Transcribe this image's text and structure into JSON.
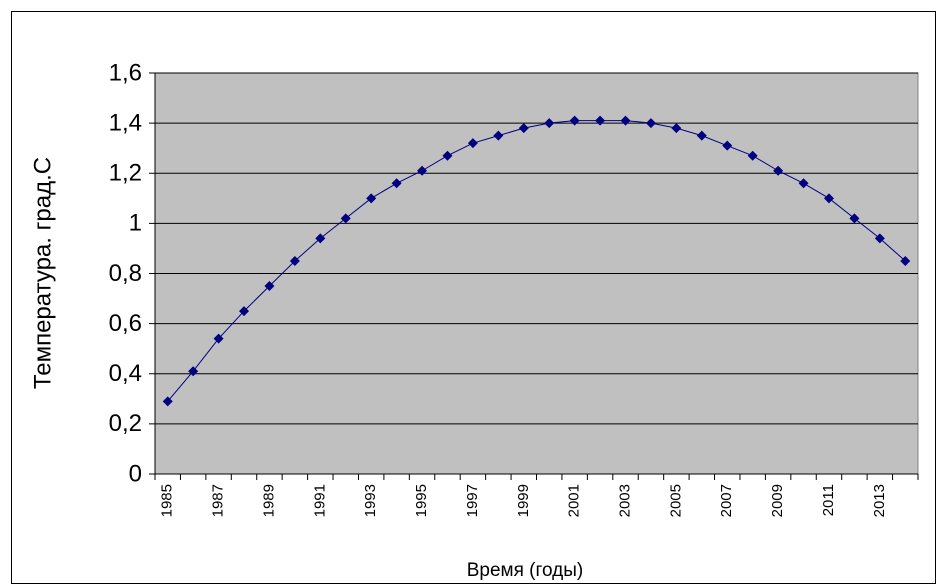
{
  "chart_data": {
    "type": "line",
    "ylabel": "Температура. град.С",
    "xlabel": "Время (годы)",
    "categories": [
      "1985",
      null,
      "1987",
      null,
      "1989",
      null,
      "1991",
      null,
      "1993",
      null,
      "1995",
      null,
      "1997",
      null,
      "1999",
      null,
      "2001",
      null,
      "2003",
      null,
      "2005",
      null,
      "2007",
      null,
      "2009",
      null,
      "2011",
      null,
      "2013",
      null
    ],
    "series": [
      {
        "color": "#000080",
        "values": [
          0.29,
          0.41,
          0.54,
          0.65,
          0.75,
          0.85,
          0.94,
          1.02,
          1.1,
          1.16,
          1.21,
          1.27,
          1.32,
          1.35,
          1.38,
          1.4,
          1.41,
          1.41,
          1.41,
          1.4,
          1.38,
          1.35,
          1.31,
          1.27,
          1.21,
          1.16,
          1.1,
          1.02,
          0.94,
          0.85
        ]
      }
    ],
    "ylim": [
      0,
      1.6
    ],
    "yticks": [
      0,
      {
        "value": 0.2,
        "label": "0,2"
      },
      {
        "value": 0.4,
        "label": "0,4"
      },
      {
        "value": 0.6,
        "label": "0,6"
      },
      {
        "value": 0.8,
        "label": "0,8"
      },
      1,
      {
        "value": 1.2,
        "label": "1,2"
      },
      {
        "value": 1.4,
        "label": "1,4"
      },
      {
        "value": 1.6,
        "label": "1,6"
      }
    ],
    "grid": true,
    "plot_background": "#c0c0c0"
  }
}
